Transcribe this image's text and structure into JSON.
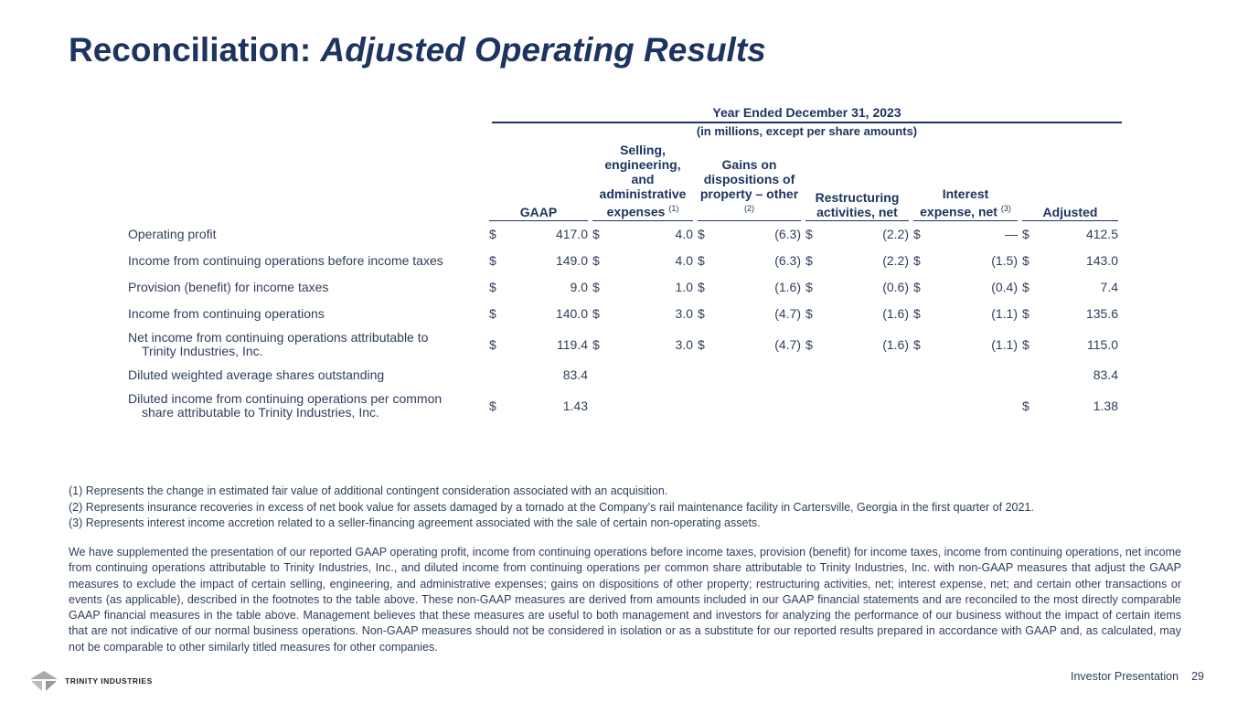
{
  "title": {
    "plain": "Reconciliation: ",
    "italic": "Adjusted Operating Results"
  },
  "header": {
    "period": "Year Ended December 31, 2023",
    "units": "(in millions, except per share amounts)"
  },
  "columns": [
    {
      "label": "GAAP",
      "note": ""
    },
    {
      "label": "Selling, engineering, and administrative expenses",
      "note": "(1)"
    },
    {
      "label": "Gains on dispositions of property – other",
      "note": "(2)"
    },
    {
      "label": "Restructuring activities, net",
      "note": ""
    },
    {
      "label": "Interest expense, net",
      "note": "(3)"
    },
    {
      "label": "Adjusted",
      "note": ""
    }
  ],
  "rows": [
    {
      "label": "Operating profit",
      "label2": "",
      "cells": [
        [
          "$",
          "417.0"
        ],
        [
          "$",
          "4.0"
        ],
        [
          "$",
          "(6.3)"
        ],
        [
          "$",
          "(2.2)"
        ],
        [
          "$",
          "—"
        ],
        [
          "$",
          "412.5"
        ]
      ]
    },
    {
      "label": "Income from continuing operations before income taxes",
      "label2": "",
      "cells": [
        [
          "$",
          "149.0"
        ],
        [
          "$",
          "4.0"
        ],
        [
          "$",
          "(6.3)"
        ],
        [
          "$",
          "(2.2)"
        ],
        [
          "$",
          "(1.5)"
        ],
        [
          "$",
          "143.0"
        ]
      ]
    },
    {
      "label": "Provision (benefit) for income taxes",
      "label2": "",
      "cells": [
        [
          "$",
          "9.0"
        ],
        [
          "$",
          "1.0"
        ],
        [
          "$",
          "(1.6)"
        ],
        [
          "$",
          "(0.6)"
        ],
        [
          "$",
          "(0.4)"
        ],
        [
          "$",
          "7.4"
        ]
      ]
    },
    {
      "label": "Income from continuing operations",
      "label2": "",
      "cells": [
        [
          "$",
          "140.0"
        ],
        [
          "$",
          "3.0"
        ],
        [
          "$",
          "(4.7)"
        ],
        [
          "$",
          "(1.6)"
        ],
        [
          "$",
          "(1.1)"
        ],
        [
          "$",
          "135.6"
        ]
      ]
    },
    {
      "label": "Net income from continuing operations attributable to",
      "label2": "Trinity Industries, Inc.",
      "cells": [
        [
          "$",
          "119.4"
        ],
        [
          "$",
          "3.0"
        ],
        [
          "$",
          "(4.7)"
        ],
        [
          "$",
          "(1.6)"
        ],
        [
          "$",
          "(1.1)"
        ],
        [
          "$",
          "115.0"
        ]
      ]
    },
    {
      "label": "Diluted weighted average shares outstanding",
      "label2": "",
      "cells": [
        [
          "",
          "83.4"
        ],
        [
          "",
          ""
        ],
        [
          "",
          ""
        ],
        [
          "",
          ""
        ],
        [
          "",
          ""
        ],
        [
          "",
          "83.4"
        ]
      ]
    },
    {
      "label": "Diluted income from continuing operations per common",
      "label2": "share attributable to Trinity Industries, Inc.",
      "cells": [
        [
          "$",
          "1.43"
        ],
        [
          "",
          ""
        ],
        [
          "",
          ""
        ],
        [
          "",
          ""
        ],
        [
          "",
          ""
        ],
        [
          "$",
          "1.38"
        ]
      ]
    }
  ],
  "footnotes": [
    "(1) Represents the change in estimated fair value of additional contingent consideration associated with an acquisition.",
    "(2) Represents insurance recoveries in excess of net book value for assets damaged by a tornado at the Company’s rail maintenance facility in Cartersville, Georgia in the first quarter of 2021.",
    "(3) Represents interest income accretion related to a seller-financing agreement associated with the sale of certain non-operating assets."
  ],
  "disclaimer": "We have supplemented the presentation of our reported GAAP operating profit, income from continuing operations before income taxes, provision (benefit) for income taxes, income from continuing operations, net income from continuing operations attributable to Trinity Industries, Inc., and diluted income from continuing operations per common share attributable to Trinity Industries, Inc. with non-GAAP measures that adjust the GAAP measures to exclude the impact of certain selling, engineering, and administrative expenses; gains on dispositions of other property; restructuring activities, net; interest expense, net; and certain other transactions or events (as applicable), described in the footnotes to the table above. These non-GAAP measures are derived from amounts included in our GAAP financial statements and are reconciled to the most directly comparable GAAP financial measures in the table above. Management believes that these measures are useful to both management and investors for analyzing the performance of our business without the impact of certain items that are not indicative of our normal business operations. Non-GAAP measures should not be considered in isolation or as a substitute for our reported results prepared in accordance with GAAP and, as calculated, may not be comparable to other similarly titled measures for other companies.",
  "footer": {
    "logo": "TRINITY INDUSTRIES",
    "label": "Investor Presentation",
    "page": "29"
  }
}
